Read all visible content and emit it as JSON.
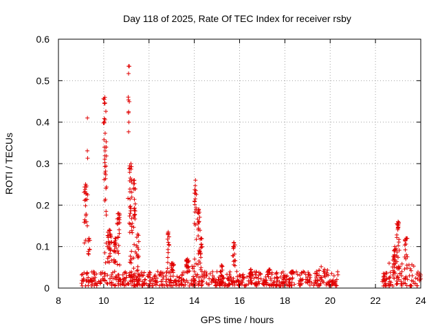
{
  "chart_data": {
    "type": "scatter",
    "title": "Day 118 of 2025, Rate Of TEC Index for receiver rsby",
    "xlabel": "GPS time / hours",
    "ylabel": "ROTI / TECUs",
    "xlim": [
      8,
      24
    ],
    "ylim": [
      0,
      0.6
    ],
    "xticks": [
      8,
      10,
      12,
      14,
      16,
      18,
      20,
      22,
      24
    ],
    "xtick_labels": [
      "8",
      "10",
      "12",
      "14",
      "16",
      "18",
      "20",
      "22",
      "24"
    ],
    "yticks": [
      0,
      0.1,
      0.2,
      0.3,
      0.4,
      0.5,
      0.6
    ],
    "ytick_labels": [
      "0",
      "0.1",
      "0.2",
      "0.3",
      "0.4",
      "0.5",
      "0.6"
    ],
    "grid": true,
    "marker": "+",
    "series_color": "#e00000",
    "baseline": {
      "segments": [
        [
          9.0,
          20.35
        ],
        [
          22.3,
          24.0
        ]
      ],
      "low": 0.005,
      "high": 0.04,
      "bumps": [
        {
          "x0": 19.2,
          "x1": 19.9,
          "high": 0.055
        },
        {
          "x0": 13.6,
          "x1": 14.0,
          "high": 0.07
        },
        {
          "x0": 22.5,
          "x1": 23.8,
          "high": 0.06
        }
      ]
    },
    "spikes": [
      {
        "x": 9.2,
        "w": 0.15,
        "peak": 0.25,
        "n": 22
      },
      {
        "x": 9.28,
        "w": 0.03,
        "peak": 0.41,
        "n": 4
      },
      {
        "x": 9.35,
        "w": 0.08,
        "peak": 0.12,
        "n": 8
      },
      {
        "x": 10.05,
        "w": 0.12,
        "peak": 0.46,
        "n": 28
      },
      {
        "x": 10.1,
        "w": 0.05,
        "peak": 0.34,
        "n": 10
      },
      {
        "x": 10.25,
        "w": 0.2,
        "peak": 0.14,
        "n": 30
      },
      {
        "x": 10.5,
        "w": 0.1,
        "peak": 0.12,
        "n": 18
      },
      {
        "x": 10.65,
        "w": 0.12,
        "peak": 0.18,
        "n": 20
      },
      {
        "x": 11.1,
        "w": 0.06,
        "peak": 0.535,
        "n": 12
      },
      {
        "x": 11.2,
        "w": 0.12,
        "peak": 0.3,
        "n": 34
      },
      {
        "x": 11.35,
        "w": 0.1,
        "peak": 0.26,
        "n": 24
      },
      {
        "x": 11.5,
        "w": 0.1,
        "peak": 0.13,
        "n": 14
      },
      {
        "x": 12.85,
        "w": 0.08,
        "peak": 0.135,
        "n": 14
      },
      {
        "x": 13.05,
        "w": 0.12,
        "peak": 0.06,
        "n": 14
      },
      {
        "x": 13.7,
        "w": 0.12,
        "peak": 0.07,
        "n": 16
      },
      {
        "x": 14.05,
        "w": 0.08,
        "peak": 0.26,
        "n": 18
      },
      {
        "x": 14.2,
        "w": 0.12,
        "peak": 0.19,
        "n": 22
      },
      {
        "x": 14.3,
        "w": 0.08,
        "peak": 0.12,
        "n": 12
      },
      {
        "x": 15.2,
        "w": 0.08,
        "peak": 0.055,
        "n": 6
      },
      {
        "x": 15.75,
        "w": 0.12,
        "peak": 0.11,
        "n": 14
      },
      {
        "x": 16.5,
        "w": 0.1,
        "peak": 0.045,
        "n": 6
      },
      {
        "x": 17.3,
        "w": 0.1,
        "peak": 0.045,
        "n": 6
      },
      {
        "x": 18.3,
        "w": 0.1,
        "peak": 0.04,
        "n": 6
      },
      {
        "x": 22.85,
        "w": 0.2,
        "peak": 0.1,
        "n": 20
      },
      {
        "x": 23.0,
        "w": 0.12,
        "peak": 0.16,
        "n": 20
      },
      {
        "x": 23.35,
        "w": 0.12,
        "peak": 0.12,
        "n": 14
      }
    ]
  }
}
